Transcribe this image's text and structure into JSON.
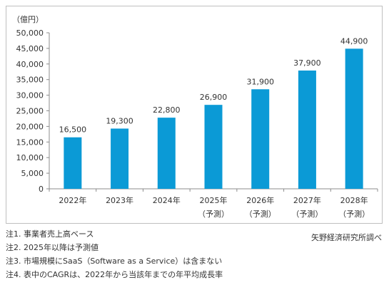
{
  "chart_data": {
    "type": "bar",
    "unit_label": "（億円）",
    "categories": [
      "2022年",
      "2023年",
      "2024年",
      "2025年",
      "2026年",
      "2027年",
      "2028年"
    ],
    "category_sublabels": [
      "",
      "",
      "",
      "（予測）",
      "（予測）",
      "（予測）",
      "（予測）"
    ],
    "values": [
      16500,
      19300,
      22800,
      26900,
      31900,
      37900,
      44900
    ],
    "data_labels": [
      "16,500",
      "19,300",
      "22,800",
      "26,900",
      "31,900",
      "37,900",
      "44,900"
    ],
    "ylim": [
      0,
      50000
    ],
    "yticks": [
      0,
      5000,
      10000,
      15000,
      20000,
      25000,
      30000,
      35000,
      40000,
      45000,
      50000
    ],
    "ytick_labels": [
      "0",
      "5,000",
      "10,000",
      "15,000",
      "20,000",
      "25,000",
      "30,000",
      "35,000",
      "40,000",
      "45,000",
      "50,000"
    ],
    "grid": false,
    "bar_color": "#0b9ad6"
  },
  "notes": [
    "注1. 事業者売上高ベース",
    "注2. 2025年以降は予測値",
    "注3. 市場規模にSaaS（Software as a Service）は含まない",
    "注4. 表中のCAGRは、2022年から当該年までの年平均成長率"
  ],
  "source": "矢野経済研究所調べ"
}
